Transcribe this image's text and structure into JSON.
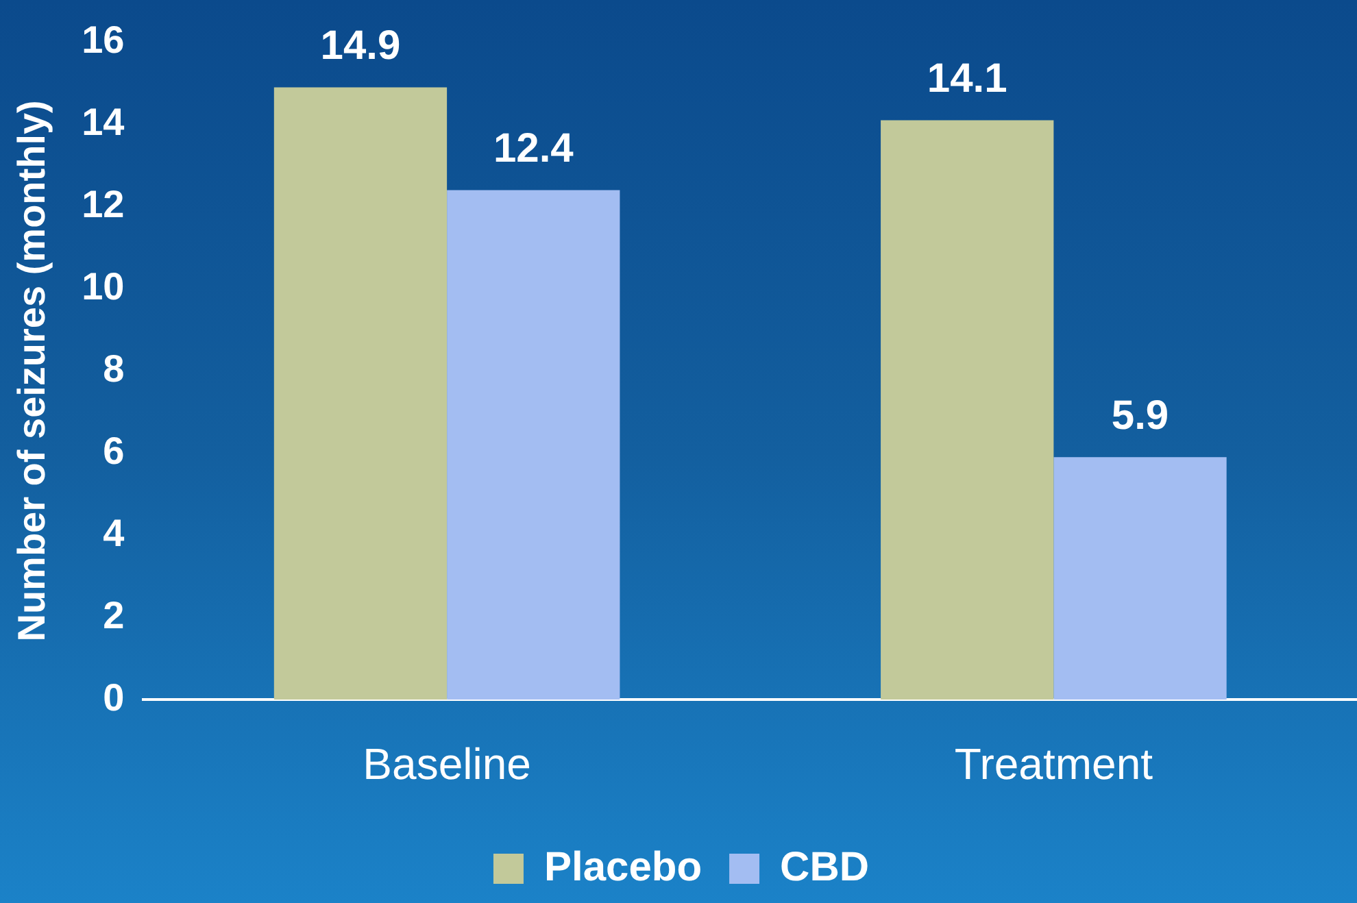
{
  "chart_data": {
    "type": "bar",
    "ylabel": "Number of seizures (monthly)",
    "categories": [
      "Baseline",
      "Treatment"
    ],
    "series": [
      {
        "name": "Placebo",
        "color": "#c2c99a",
        "values": [
          14.9,
          14.1
        ]
      },
      {
        "name": "CBD",
        "color": "#a3bdf2",
        "values": [
          12.4,
          5.9
        ]
      }
    ],
    "ylim": [
      0,
      16
    ],
    "yticks": [
      0,
      2,
      4,
      6,
      8,
      10,
      12,
      14,
      16
    ],
    "grid": false,
    "legend": "bottom",
    "data_labels": true
  }
}
